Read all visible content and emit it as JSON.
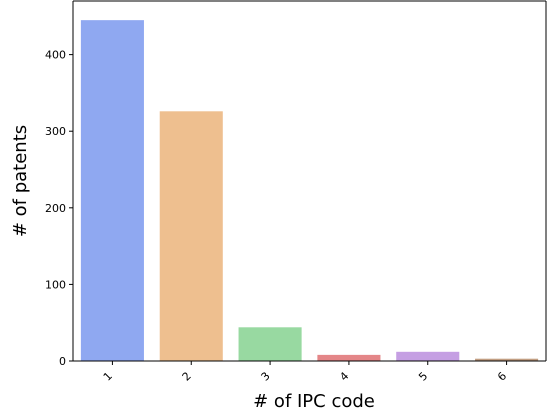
{
  "chart_data": {
    "type": "bar",
    "title": "",
    "xlabel": "# of IPC code",
    "ylabel": "# of patents",
    "categories": [
      "1",
      "2",
      "3",
      "4",
      "5",
      "6"
    ],
    "values": [
      445,
      326,
      44,
      8,
      12,
      3
    ],
    "colors": [
      "#8fa8f1",
      "#eebf8f",
      "#98d9a1",
      "#e48688",
      "#c59fe3",
      "#c29e82"
    ],
    "ylim": [
      0,
      470
    ],
    "yticks": [
      0,
      100,
      200,
      300,
      400
    ],
    "grid": false,
    "legend": "none"
  }
}
